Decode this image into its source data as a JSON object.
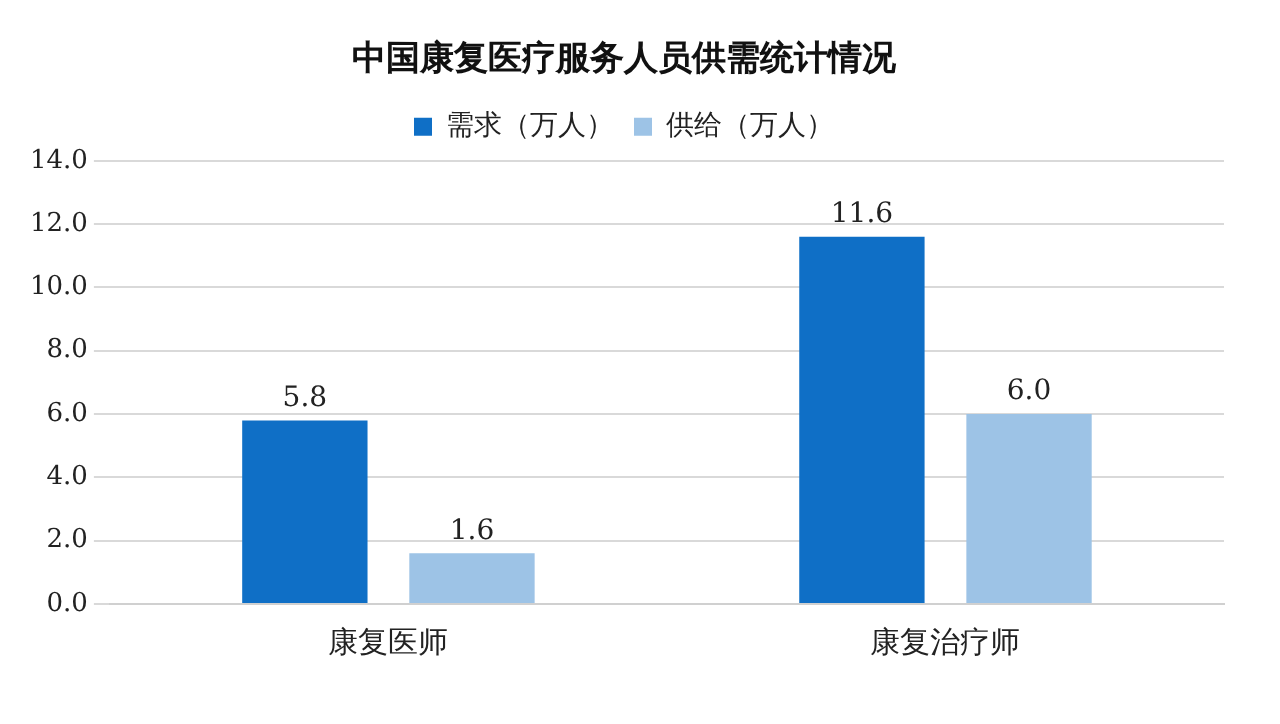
{
  "chart_data": {
    "type": "bar",
    "title": "中国康复医疗服务人员供需统计情况",
    "categories": [
      "康复医师",
      "康复治疗师"
    ],
    "series": [
      {
        "name": "需求（万人）",
        "color": "#0f6fc6",
        "values": [
          5.8,
          11.6
        ],
        "value_labels": [
          "5.8",
          "11.6"
        ]
      },
      {
        "name": "供给（万人）",
        "color": "#9dc3e6",
        "values": [
          1.6,
          6.0
        ],
        "value_labels": [
          "1.6",
          "6.0"
        ]
      }
    ],
    "ylim": [
      0,
      14
    ],
    "yticks": [
      {
        "value": 0,
        "label": "0.0"
      },
      {
        "value": 2,
        "label": "2.0"
      },
      {
        "value": 4,
        "label": "4.0"
      },
      {
        "value": 6,
        "label": "6.0"
      },
      {
        "value": 8,
        "label": "8.0"
      },
      {
        "value": 10,
        "label": "10.0"
      },
      {
        "value": 12,
        "label": "12.0"
      },
      {
        "value": 14,
        "label": "14.0"
      }
    ],
    "grid": "y",
    "legend": "top"
  }
}
